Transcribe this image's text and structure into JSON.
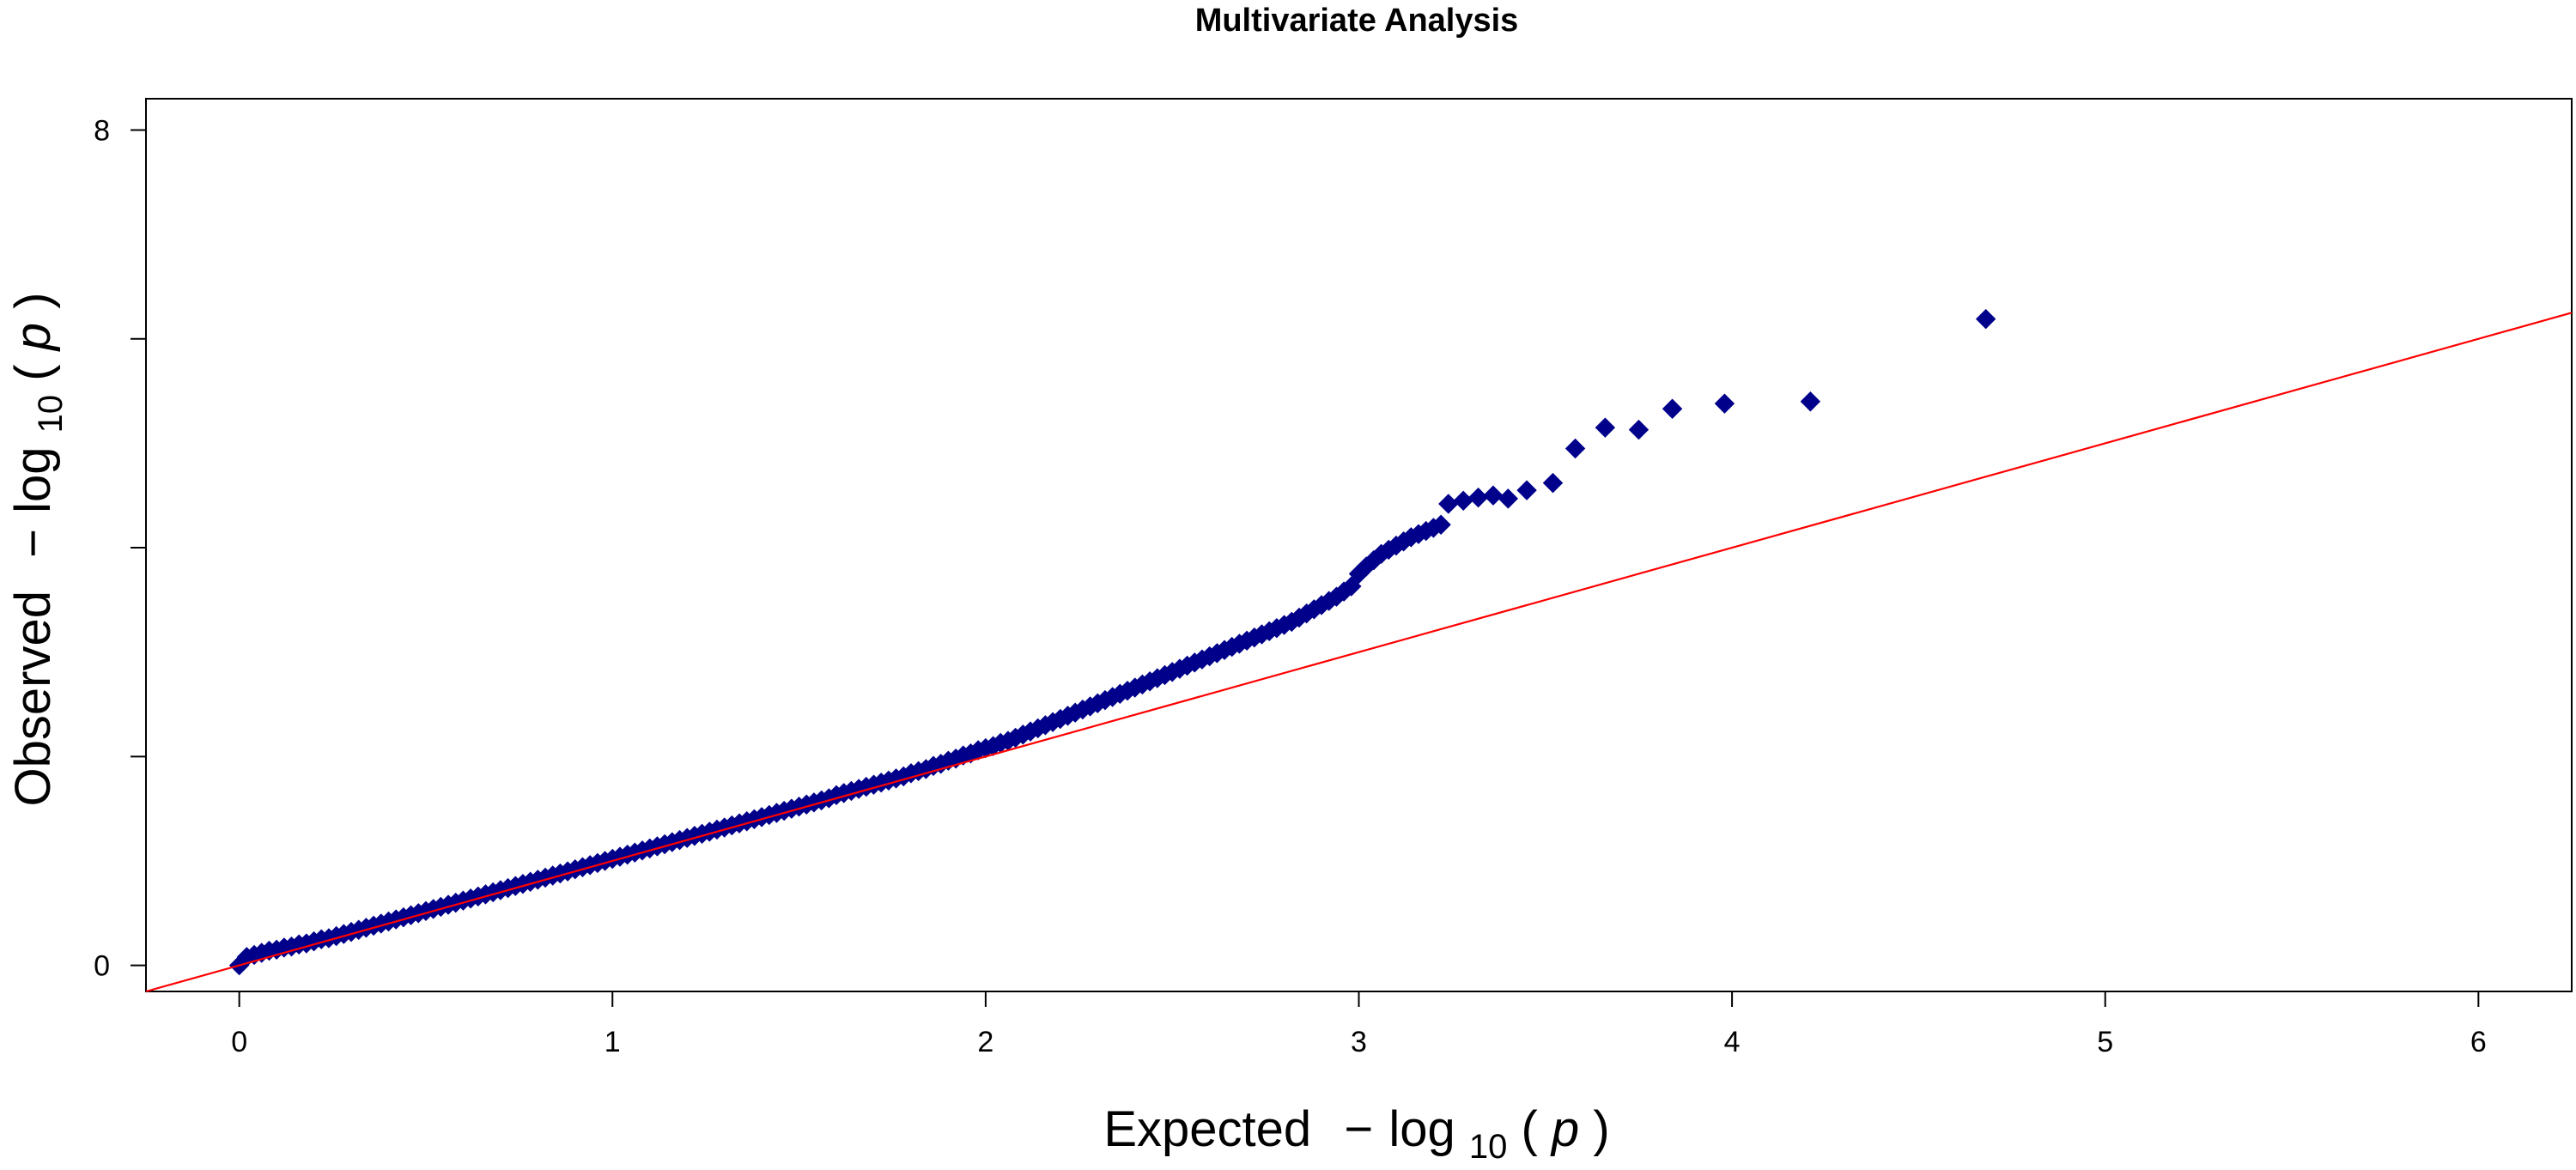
{
  "chart_data": {
    "type": "scatter",
    "title": "Multivariate Analysis",
    "xlabel": {
      "prefix": "Expected",
      "minus": "−",
      "log": "log",
      "sub": "10",
      "open": "(",
      "var": "p",
      "close": ")"
    },
    "ylabel": {
      "prefix": "Observed",
      "minus": "−",
      "log": "log",
      "sub": "10",
      "open": "(",
      "var": "p",
      "close": ")"
    },
    "xlim": [
      -0.25,
      6.25
    ],
    "ylim": [
      -0.25,
      8.3
    ],
    "x_ticks": [
      0,
      1,
      2,
      3,
      4,
      5,
      6
    ],
    "x_tick_labels": [
      "0",
      "1",
      "2",
      "3",
      "4",
      "5",
      "6"
    ],
    "y_ticks": [
      0,
      2,
      4,
      6,
      8
    ],
    "y_tick_labels": [
      "0",
      "",
      "",
      "",
      "8"
    ],
    "grid": false,
    "legend": "none",
    "reference_line": {
      "slope": 1,
      "intercept": 0,
      "color": "#ff0000"
    },
    "marker": {
      "shape": "diamond",
      "color": "#00008b"
    },
    "series": [
      {
        "points": [
          [
            0.0,
            0.0
          ],
          [
            0.02,
            0.08
          ],
          [
            0.04,
            0.1
          ],
          [
            0.06,
            0.12
          ],
          [
            0.08,
            0.14
          ],
          [
            0.1,
            0.15
          ],
          [
            0.12,
            0.17
          ],
          [
            0.14,
            0.18
          ],
          [
            0.16,
            0.2
          ],
          [
            0.18,
            0.21
          ],
          [
            0.2,
            0.23
          ],
          [
            0.22,
            0.25
          ],
          [
            0.24,
            0.26
          ],
          [
            0.26,
            0.28
          ],
          [
            0.28,
            0.3
          ],
          [
            0.3,
            0.32
          ],
          [
            0.32,
            0.34
          ],
          [
            0.34,
            0.36
          ],
          [
            0.36,
            0.38
          ],
          [
            0.38,
            0.4
          ],
          [
            0.4,
            0.42
          ],
          [
            0.42,
            0.44
          ],
          [
            0.44,
            0.46
          ],
          [
            0.46,
            0.48
          ],
          [
            0.48,
            0.5
          ],
          [
            0.5,
            0.52
          ],
          [
            0.52,
            0.54
          ],
          [
            0.54,
            0.56
          ],
          [
            0.56,
            0.58
          ],
          [
            0.58,
            0.6
          ],
          [
            0.6,
            0.62
          ],
          [
            0.62,
            0.64
          ],
          [
            0.64,
            0.66
          ],
          [
            0.66,
            0.68
          ],
          [
            0.68,
            0.7
          ],
          [
            0.7,
            0.72
          ],
          [
            0.72,
            0.74
          ],
          [
            0.74,
            0.76
          ],
          [
            0.76,
            0.78
          ],
          [
            0.78,
            0.8
          ],
          [
            0.8,
            0.82
          ],
          [
            0.82,
            0.84
          ],
          [
            0.84,
            0.86
          ],
          [
            0.86,
            0.88
          ],
          [
            0.88,
            0.9
          ],
          [
            0.9,
            0.92
          ],
          [
            0.92,
            0.94
          ],
          [
            0.94,
            0.96
          ],
          [
            0.96,
            0.98
          ],
          [
            0.98,
            1.0
          ],
          [
            1.0,
            1.02
          ],
          [
            1.02,
            1.04
          ],
          [
            1.04,
            1.06
          ],
          [
            1.06,
            1.08
          ],
          [
            1.08,
            1.1
          ],
          [
            1.1,
            1.12
          ],
          [
            1.12,
            1.14
          ],
          [
            1.14,
            1.16
          ],
          [
            1.16,
            1.18
          ],
          [
            1.18,
            1.2
          ],
          [
            1.2,
            1.22
          ],
          [
            1.22,
            1.24
          ],
          [
            1.24,
            1.26
          ],
          [
            1.26,
            1.28
          ],
          [
            1.28,
            1.3
          ],
          [
            1.3,
            1.32
          ],
          [
            1.32,
            1.34
          ],
          [
            1.34,
            1.36
          ],
          [
            1.36,
            1.38
          ],
          [
            1.38,
            1.4
          ],
          [
            1.4,
            1.42
          ],
          [
            1.42,
            1.44
          ],
          [
            1.44,
            1.46
          ],
          [
            1.46,
            1.48
          ],
          [
            1.48,
            1.5
          ],
          [
            1.5,
            1.52
          ],
          [
            1.52,
            1.54
          ],
          [
            1.54,
            1.56
          ],
          [
            1.56,
            1.58
          ],
          [
            1.58,
            1.6
          ],
          [
            1.6,
            1.63
          ],
          [
            1.62,
            1.65
          ],
          [
            1.64,
            1.67
          ],
          [
            1.66,
            1.69
          ],
          [
            1.68,
            1.71
          ],
          [
            1.7,
            1.73
          ],
          [
            1.72,
            1.75
          ],
          [
            1.74,
            1.77
          ],
          [
            1.76,
            1.79
          ],
          [
            1.78,
            1.81
          ],
          [
            1.8,
            1.84
          ],
          [
            1.82,
            1.86
          ],
          [
            1.84,
            1.88
          ],
          [
            1.86,
            1.91
          ],
          [
            1.88,
            1.93
          ],
          [
            1.9,
            1.96
          ],
          [
            1.92,
            1.98
          ],
          [
            1.94,
            2.01
          ],
          [
            1.96,
            2.03
          ],
          [
            1.98,
            2.06
          ],
          [
            2.0,
            2.08
          ],
          [
            2.02,
            2.1
          ],
          [
            2.04,
            2.13
          ],
          [
            2.06,
            2.15
          ],
          [
            2.08,
            2.18
          ],
          [
            2.1,
            2.21
          ],
          [
            2.12,
            2.24
          ],
          [
            2.14,
            2.27
          ],
          [
            2.16,
            2.3
          ],
          [
            2.18,
            2.33
          ],
          [
            2.2,
            2.36
          ],
          [
            2.22,
            2.39
          ],
          [
            2.24,
            2.42
          ],
          [
            2.26,
            2.45
          ],
          [
            2.28,
            2.48
          ],
          [
            2.3,
            2.51
          ],
          [
            2.32,
            2.54
          ],
          [
            2.34,
            2.57
          ],
          [
            2.36,
            2.6
          ],
          [
            2.38,
            2.63
          ],
          [
            2.4,
            2.66
          ],
          [
            2.42,
            2.69
          ],
          [
            2.44,
            2.72
          ],
          [
            2.46,
            2.75
          ],
          [
            2.48,
            2.78
          ],
          [
            2.5,
            2.81
          ],
          [
            2.52,
            2.84
          ],
          [
            2.54,
            2.87
          ],
          [
            2.56,
            2.9
          ],
          [
            2.58,
            2.93
          ],
          [
            2.6,
            2.96
          ],
          [
            2.62,
            2.99
          ],
          [
            2.64,
            3.02
          ],
          [
            2.66,
            3.05
          ],
          [
            2.68,
            3.08
          ],
          [
            2.7,
            3.11
          ],
          [
            2.72,
            3.14
          ],
          [
            2.74,
            3.17
          ],
          [
            2.76,
            3.2
          ],
          [
            2.78,
            3.23
          ],
          [
            2.8,
            3.26
          ],
          [
            2.82,
            3.29
          ],
          [
            2.84,
            3.33
          ],
          [
            2.86,
            3.37
          ],
          [
            2.88,
            3.41
          ],
          [
            2.9,
            3.45
          ],
          [
            2.92,
            3.49
          ],
          [
            2.94,
            3.53
          ],
          [
            2.96,
            3.58
          ],
          [
            2.98,
            3.63
          ],
          [
            3.0,
            3.75
          ],
          [
            3.02,
            3.82
          ],
          [
            3.04,
            3.88
          ],
          [
            3.06,
            3.94
          ],
          [
            3.08,
            3.98
          ],
          [
            3.1,
            4.02
          ],
          [
            3.12,
            4.06
          ],
          [
            3.14,
            4.1
          ],
          [
            3.16,
            4.13
          ],
          [
            3.18,
            4.16
          ],
          [
            3.2,
            4.19
          ],
          [
            3.22,
            4.22
          ],
          [
            3.24,
            4.42
          ],
          [
            3.28,
            4.45
          ],
          [
            3.32,
            4.48
          ],
          [
            3.36,
            4.5
          ],
          [
            3.4,
            4.47
          ],
          [
            3.45,
            4.55
          ],
          [
            3.52,
            4.62
          ],
          [
            3.58,
            4.95
          ],
          [
            3.66,
            5.15
          ],
          [
            3.75,
            5.13
          ],
          [
            3.84,
            5.33
          ],
          [
            3.98,
            5.38
          ],
          [
            4.21,
            5.4
          ],
          [
            4.68,
            6.19
          ]
        ]
      }
    ]
  }
}
